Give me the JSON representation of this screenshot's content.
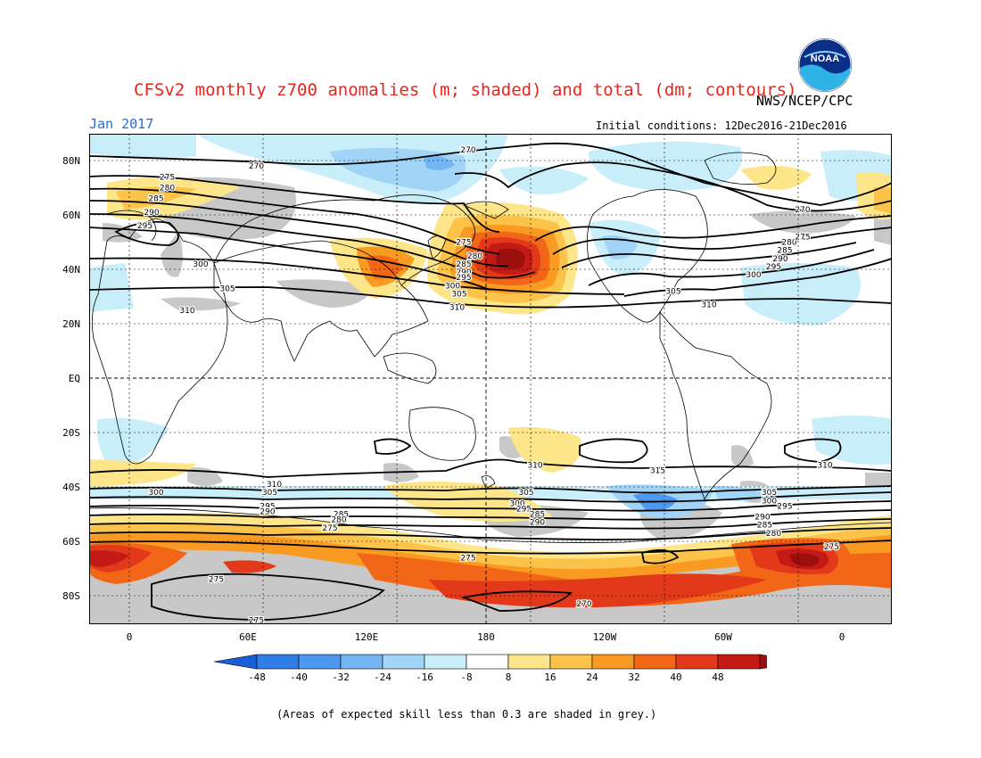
{
  "title": "CFSv2 monthly z700 anomalies (m; shaded) and total (dm; contours)",
  "agency": "NWS/NCEP/CPC",
  "logo_text": "NOAA",
  "month": "Jan 2017",
  "initial_conditions": "Initial conditions: 12Dec2016-21Dec2016",
  "footnote": "(Areas of expected skill less than 0.3 are shaded in grey.)",
  "lat_labels": [
    "80N",
    "60N",
    "40N",
    "20N",
    "EQ",
    "20S",
    "40S",
    "60S",
    "80S"
  ],
  "lon_labels": [
    "0",
    "60E",
    "120E",
    "180",
    "120W",
    "60W",
    "0"
  ],
  "colorbar": {
    "labels": [
      "-48",
      "-40",
      "-32",
      "-24",
      "-16",
      "-8",
      "8",
      "16",
      "24",
      "32",
      "40",
      "48"
    ],
    "colors": [
      "#1a5fd6",
      "#2f7de6",
      "#4c99ef",
      "#74b6f4",
      "#a2d4f7",
      "#c8eef9",
      "#ffffff",
      "#fde58a",
      "#fcc34a",
      "#f99a22",
      "#f26617",
      "#e2391a",
      "#c41a16",
      "#9b0e0e"
    ]
  },
  "contour_labels": [
    {
      "text": "270",
      "lat": 84,
      "lon": 150
    },
    {
      "text": "270",
      "lat": 78,
      "lon": 55
    },
    {
      "text": "270",
      "lat": 62,
      "lon": -60
    },
    {
      "text": "275",
      "lat": 74,
      "lon": 15
    },
    {
      "text": "280",
      "lat": 70,
      "lon": 15
    },
    {
      "text": "285",
      "lat": 66,
      "lon": 10
    },
    {
      "text": "290",
      "lat": 61,
      "lon": 8
    },
    {
      "text": "295",
      "lat": 56,
      "lon": 5
    },
    {
      "text": "300",
      "lat": 42,
      "lon": 30
    },
    {
      "text": "305",
      "lat": 33,
      "lon": 42
    },
    {
      "text": "310",
      "lat": 25,
      "lon": 24
    },
    {
      "text": "275",
      "lat": 50,
      "lon": 148
    },
    {
      "text": "280",
      "lat": 45,
      "lon": 153
    },
    {
      "text": "285",
      "lat": 42,
      "lon": 148
    },
    {
      "text": "290",
      "lat": 39,
      "lon": 148
    },
    {
      "text": "295",
      "lat": 37,
      "lon": 148
    },
    {
      "text": "300",
      "lat": 34,
      "lon": 143
    },
    {
      "text": "305",
      "lat": 31,
      "lon": 146
    },
    {
      "text": "310",
      "lat": 26,
      "lon": 145
    },
    {
      "text": "305",
      "lat": 32,
      "lon": -118
    },
    {
      "text": "310",
      "lat": 27,
      "lon": -102
    },
    {
      "text": "300",
      "lat": 38,
      "lon": -82
    },
    {
      "text": "295",
      "lat": 41,
      "lon": -73
    },
    {
      "text": "290",
      "lat": 44,
      "lon": -70
    },
    {
      "text": "285",
      "lat": 47,
      "lon": -68
    },
    {
      "text": "280",
      "lat": 50,
      "lon": -66
    },
    {
      "text": "275",
      "lat": 52,
      "lon": -60
    },
    {
      "text": "310",
      "lat": -32,
      "lon": 180
    },
    {
      "text": "315",
      "lat": -34,
      "lon": -125
    },
    {
      "text": "310",
      "lat": -32,
      "lon": -50
    },
    {
      "text": "310",
      "lat": -39,
      "lon": 63
    },
    {
      "text": "305",
      "lat": -42,
      "lon": 61
    },
    {
      "text": "300",
      "lat": -42,
      "lon": 10
    },
    {
      "text": "295",
      "lat": -47,
      "lon": 60
    },
    {
      "text": "290",
      "lat": -49,
      "lon": 60
    },
    {
      "text": "285",
      "lat": -50,
      "lon": 93
    },
    {
      "text": "280",
      "lat": -52,
      "lon": 92
    },
    {
      "text": "275",
      "lat": -55,
      "lon": 88
    },
    {
      "text": "305",
      "lat": -42,
      "lon": 176
    },
    {
      "text": "300",
      "lat": -46,
      "lon": 172
    },
    {
      "text": "295",
      "lat": -48,
      "lon": 175
    },
    {
      "text": "285",
      "lat": -50,
      "lon": -179
    },
    {
      "text": "290",
      "lat": -53,
      "lon": -179
    },
    {
      "text": "305",
      "lat": -42,
      "lon": -75
    },
    {
      "text": "300",
      "lat": -45,
      "lon": -75
    },
    {
      "text": "295",
      "lat": -47,
      "lon": -68
    },
    {
      "text": "290",
      "lat": -51,
      "lon": -78
    },
    {
      "text": "285",
      "lat": -54,
      "lon": -77
    },
    {
      "text": "280",
      "lat": -57,
      "lon": -73
    },
    {
      "text": "275",
      "lat": -62,
      "lon": -47
    },
    {
      "text": "275",
      "lat": -66,
      "lon": 150
    },
    {
      "text": "275",
      "lat": -74,
      "lon": 37
    },
    {
      "text": "275",
      "lat": -89,
      "lon": 55
    },
    {
      "text": "270",
      "lat": -83,
      "lon": -158
    }
  ]
}
